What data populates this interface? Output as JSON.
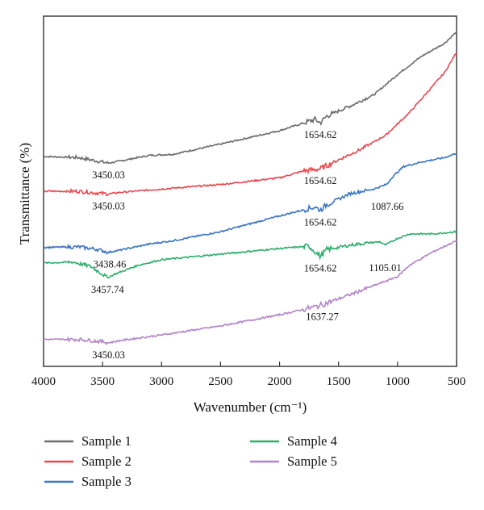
{
  "chart_data": {
    "type": "line",
    "title": "",
    "xlabel": "Wavenumber (cm⁻¹)",
    "ylabel": "Transmittance (%)",
    "xlim": [
      4000,
      500
    ],
    "x_reversed": true,
    "y_ticks_shown": false,
    "grid": false,
    "legend_position": "bottom",
    "xticks": [
      "4000",
      "3500",
      "3000",
      "2500",
      "2000",
      "1500",
      "1000",
      "500"
    ],
    "series": [
      {
        "name": "Sample 1",
        "color": "#6b6b6b",
        "points": [
          [
            4000,
            0.935
          ],
          [
            3700,
            0.93
          ],
          [
            3550,
            0.915
          ],
          [
            3450,
            0.905
          ],
          [
            3350,
            0.915
          ],
          [
            3100,
            0.94
          ],
          [
            2900,
            0.945
          ],
          [
            2500,
            0.99
          ],
          [
            2000,
            1.05
          ],
          [
            1700,
            1.1
          ],
          [
            1654.62,
            1.085
          ],
          [
            1600,
            1.115
          ],
          [
            1400,
            1.16
          ],
          [
            1200,
            1.21
          ],
          [
            1000,
            1.3
          ],
          [
            800,
            1.38
          ],
          [
            600,
            1.44
          ],
          [
            500,
            1.49
          ]
        ],
        "peaks": [
          {
            "x": 3450.03,
            "label": "3450.03"
          },
          {
            "x": 1654.62,
            "label": "1654.62"
          }
        ]
      },
      {
        "name": "Sample 2",
        "color": "#e84850",
        "points": [
          [
            4000,
            0.78
          ],
          [
            3700,
            0.78
          ],
          [
            3550,
            0.772
          ],
          [
            3450,
            0.768
          ],
          [
            3350,
            0.775
          ],
          [
            3000,
            0.79
          ],
          [
            2500,
            0.81
          ],
          [
            2000,
            0.84
          ],
          [
            1800,
            0.87
          ],
          [
            1654.62,
            0.88
          ],
          [
            1500,
            0.92
          ],
          [
            1300,
            0.97
          ],
          [
            1100,
            1.03
          ],
          [
            1000,
            1.08
          ],
          [
            900,
            1.13
          ],
          [
            800,
            1.19
          ],
          [
            700,
            1.25
          ],
          [
            600,
            1.31
          ],
          [
            500,
            1.4
          ]
        ],
        "peaks": [
          {
            "x": 3450.03,
            "label": "3450.03"
          },
          {
            "x": 1654.62,
            "label": "1654.62"
          }
        ]
      },
      {
        "name": "Sample 3",
        "color": "#3a74c4",
        "points": [
          [
            4000,
            0.53
          ],
          [
            3700,
            0.532
          ],
          [
            3550,
            0.522
          ],
          [
            3450,
            0.508
          ],
          [
            3350,
            0.518
          ],
          [
            3100,
            0.545
          ],
          [
            2900,
            0.56
          ],
          [
            2500,
            0.6
          ],
          [
            2000,
            0.67
          ],
          [
            1700,
            0.71
          ],
          [
            1654.62,
            0.696
          ],
          [
            1600,
            0.72
          ],
          [
            1400,
            0.77
          ],
          [
            1200,
            0.79
          ],
          [
            1087.66,
            0.812
          ],
          [
            1050,
            0.84
          ],
          [
            950,
            0.89
          ],
          [
            800,
            0.91
          ],
          [
            600,
            0.93
          ],
          [
            500,
            0.95
          ]
        ],
        "peaks": [
          {
            "x": 3438.46,
            "label": "3438.46"
          },
          {
            "x": 1654.62,
            "label": "1654.62"
          },
          {
            "x": 1087.66,
            "label": "1087.66"
          }
        ]
      },
      {
        "name": "Sample 4",
        "color": "#2fae6e",
        "points": [
          [
            4000,
            0.46
          ],
          [
            3750,
            0.465
          ],
          [
            3600,
            0.445
          ],
          [
            3500,
            0.41
          ],
          [
            3457.74,
            0.395
          ],
          [
            3400,
            0.41
          ],
          [
            3200,
            0.45
          ],
          [
            3000,
            0.475
          ],
          [
            2500,
            0.5
          ],
          [
            2000,
            0.525
          ],
          [
            1750,
            0.535
          ],
          [
            1654.62,
            0.49
          ],
          [
            1600,
            0.52
          ],
          [
            1400,
            0.54
          ],
          [
            1250,
            0.55
          ],
          [
            1150,
            0.555
          ],
          [
            1105.01,
            0.54
          ],
          [
            1000,
            0.57
          ],
          [
            900,
            0.59
          ],
          [
            700,
            0.59
          ],
          [
            500,
            0.6
          ]
        ],
        "peaks": [
          {
            "x": 3457.74,
            "label": "3457.74"
          },
          {
            "x": 1654.62,
            "label": "1654.62"
          },
          {
            "x": 1105.01,
            "label": "1105.01"
          }
        ]
      },
      {
        "name": "Sample 5",
        "color": "#b283c8",
        "points": [
          [
            4000,
            0.12
          ],
          [
            3700,
            0.12
          ],
          [
            3500,
            0.11
          ],
          [
            3450,
            0.105
          ],
          [
            3350,
            0.115
          ],
          [
            3000,
            0.14
          ],
          [
            2500,
            0.18
          ],
          [
            2000,
            0.23
          ],
          [
            1700,
            0.265
          ],
          [
            1637.27,
            0.275
          ],
          [
            1400,
            0.32
          ],
          [
            1200,
            0.36
          ],
          [
            1000,
            0.4
          ],
          [
            900,
            0.45
          ],
          [
            700,
            0.51
          ],
          [
            500,
            0.56
          ]
        ],
        "peaks": [
          {
            "x": 3450.03,
            "label": "3450.03"
          },
          {
            "x": 1637.27,
            "label": "1637.27"
          }
        ]
      }
    ]
  }
}
